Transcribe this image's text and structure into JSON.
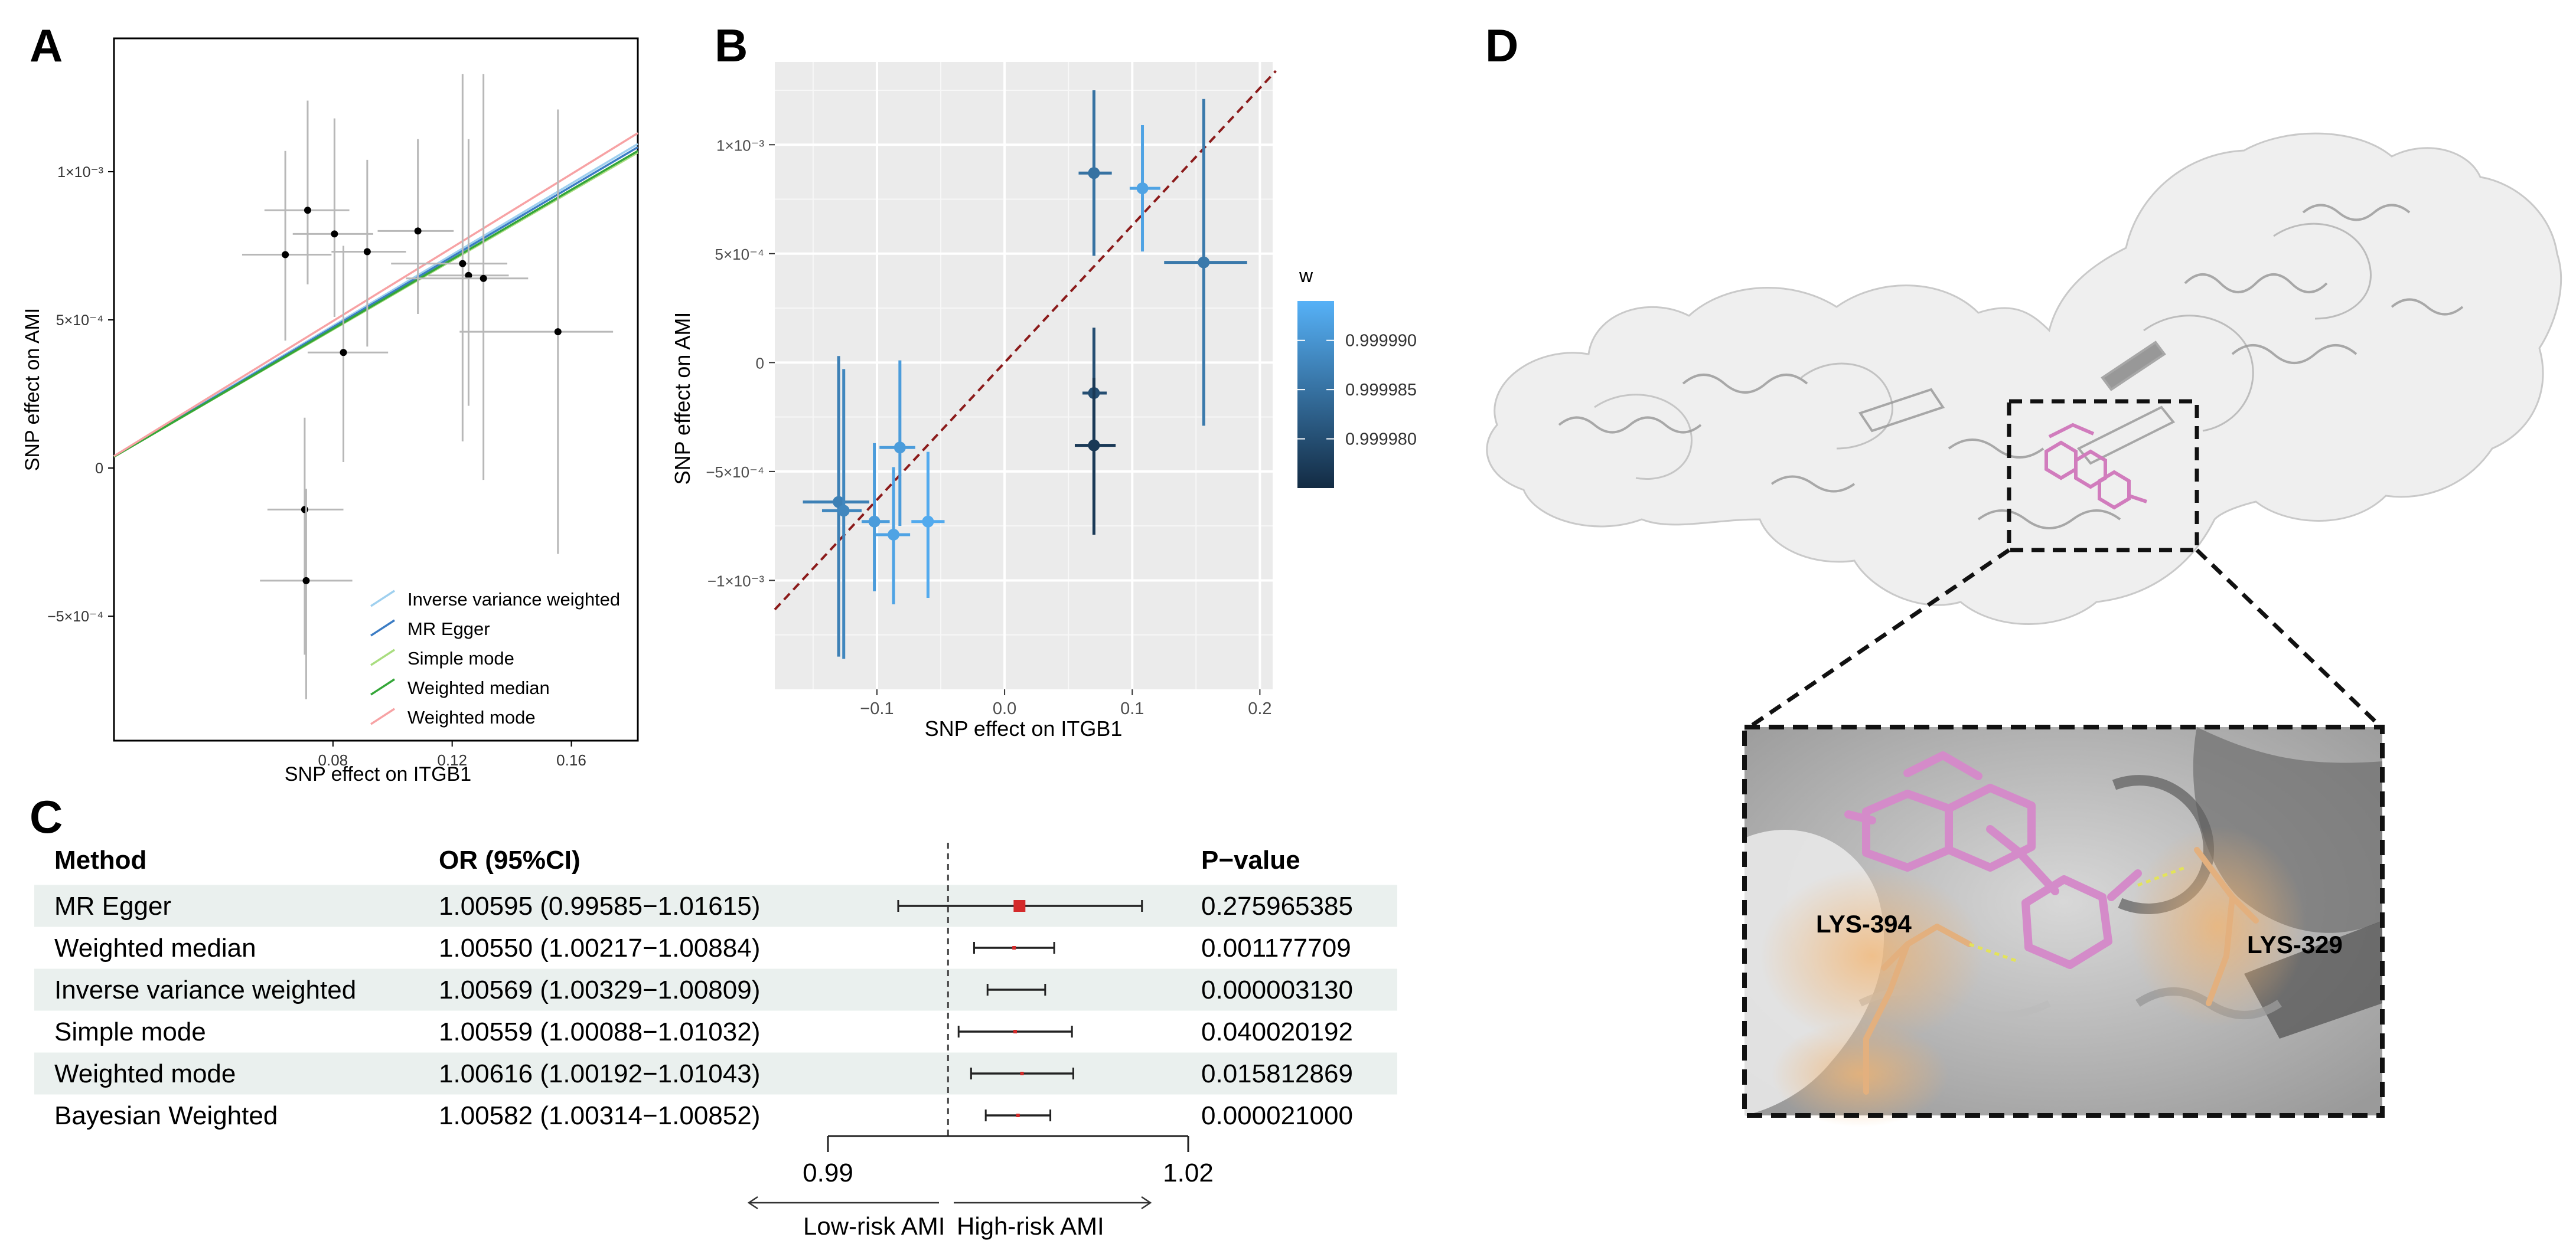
{
  "panel_letters": {
    "a": "A",
    "b": "B",
    "c": "C",
    "d": "D"
  },
  "chart_data": [
    {
      "type": "scatter",
      "panel": "A",
      "xlabel": "SNP effect on ITGB1",
      "ylabel": "SNP effect on AMI",
      "xlim": [
        0.0065,
        0.1823
      ],
      "ylim": [
        -0.00092,
        0.00145
      ],
      "x_ticks": [
        {
          "value": 0.08,
          "label": "0.08"
        },
        {
          "value": 0.12,
          "label": "0.12"
        },
        {
          "value": 0.16,
          "label": "0.16"
        }
      ],
      "y_ticks": [
        {
          "value": 0.001,
          "label": "1×10⁻³"
        },
        {
          "value": 0.0005,
          "label": "5×10⁻⁴"
        },
        {
          "value": 0,
          "label": "0"
        },
        {
          "value": -0.0005,
          "label": "−5×10⁻⁴"
        }
      ],
      "points": [
        {
          "x": 0.064,
          "y": 0.00072,
          "xlo": 0.0495,
          "xhi": 0.0795,
          "ylo": 0.00043,
          "yhi": 0.00107
        },
        {
          "x": 0.0715,
          "y": 0.00087,
          "xlo": 0.057,
          "xhi": 0.0855,
          "ylo": 0.00062,
          "yhi": 0.00124
        },
        {
          "x": 0.0805,
          "y": 0.00079,
          "xlo": 0.0665,
          "xhi": 0.0935,
          "ylo": 0.00051,
          "yhi": 0.00118
        },
        {
          "x": 0.0835,
          "y": 0.00039,
          "xlo": 0.0715,
          "xhi": 0.0985,
          "ylo": 2e-05,
          "yhi": 0.00075
        },
        {
          "x": 0.0915,
          "y": 0.00073,
          "xlo": 0.0795,
          "xhi": 0.1045,
          "ylo": 0.00041,
          "yhi": 0.00104
        },
        {
          "x": 0.1085,
          "y": 0.0008,
          "xlo": 0.095,
          "xhi": 0.1205,
          "ylo": 0.00052,
          "yhi": 0.00111
        },
        {
          "x": 0.1235,
          "y": 0.00069,
          "xlo": 0.0995,
          "xhi": 0.1385,
          "ylo": 9e-05,
          "yhi": 0.00133
        },
        {
          "x": 0.1255,
          "y": 0.00065,
          "xlo": 0.112,
          "xhi": 0.139,
          "ylo": 0.00021,
          "yhi": 0.00111
        },
        {
          "x": 0.1305,
          "y": 0.00064,
          "xlo": 0.1045,
          "xhi": 0.1455,
          "ylo": -4e-05,
          "yhi": 0.00133
        },
        {
          "x": 0.1555,
          "y": 0.00046,
          "xlo": 0.1225,
          "xhi": 0.174,
          "ylo": -0.00029,
          "yhi": 0.00121
        },
        {
          "x": 0.0705,
          "y": -0.00014,
          "xlo": 0.058,
          "xhi": 0.0835,
          "ylo": -0.00063,
          "yhi": 0.00017
        },
        {
          "x": 0.071,
          "y": -0.00038,
          "xlo": 0.0555,
          "xhi": 0.0865,
          "ylo": -0.00078,
          "yhi": -7e-05
        }
      ],
      "lines": [
        {
          "name": "Inverse variance weighted",
          "color": "#9fd0ef",
          "slope": 0.006,
          "intercept": 0.0
        },
        {
          "name": "MR Egger",
          "color": "#3b7cc4",
          "slope": 0.00594,
          "intercept": 0.0
        },
        {
          "name": "Simple mode",
          "color": "#a9dd7f",
          "slope": 0.00584,
          "intercept": 0.0
        },
        {
          "name": "Weighted median",
          "color": "#34a638",
          "slope": 0.00587,
          "intercept": 0.0
        },
        {
          "name": "Weighted mode",
          "color": "#f7a2a4",
          "slope": 0.0062,
          "intercept": 0.0
        }
      ],
      "legend": [
        {
          "label": "Inverse variance weighted",
          "color": "#9fd0ef"
        },
        {
          "label": "MR Egger",
          "color": "#3b7cc4"
        },
        {
          "label": "Simple mode",
          "color": "#a9dd7f"
        },
        {
          "label": "Weighted median",
          "color": "#34a638"
        },
        {
          "label": "Weighted mode",
          "color": "#f7a2a4"
        }
      ]
    },
    {
      "type": "scatter",
      "panel": "B",
      "xlabel": "SNP effect on ITGB1",
      "ylabel": "SNP effect on AMI",
      "xlim": [
        -0.18,
        0.21
      ],
      "ylim": [
        -0.0015,
        0.00138
      ],
      "x_ticks": [
        {
          "value": -0.1,
          "label": "−0.1"
        },
        {
          "value": 0.0,
          "label": "0.0"
        },
        {
          "value": 0.1,
          "label": "0.1"
        },
        {
          "value": 0.2,
          "label": "0.2"
        }
      ],
      "y_ticks": [
        {
          "value": 0.001,
          "label": "1×10⁻³"
        },
        {
          "value": 0.0005,
          "label": "5×10⁻⁴"
        },
        {
          "value": 0,
          "label": "0"
        },
        {
          "value": -0.0005,
          "label": "−5×10⁻⁴"
        },
        {
          "value": -0.001,
          "label": "−1×10⁻³"
        }
      ],
      "reference_line": {
        "slope": 0.0063,
        "intercept": 0.0,
        "color": "#8b1a1a",
        "style": "dashed"
      },
      "points": [
        {
          "x": 0.07,
          "y": 0.00087,
          "xlo": 0.058,
          "xhi": 0.084,
          "ylo": 0.00125,
          "yhi": 0.00049,
          "w": 0.999985
        },
        {
          "x": 0.108,
          "y": 0.0008,
          "xlo": 0.098,
          "xhi": 0.122,
          "ylo": 0.00109,
          "yhi": 0.00051,
          "w": 0.999992
        },
        {
          "x": 0.156,
          "y": 0.00046,
          "xlo": 0.125,
          "xhi": 0.19,
          "ylo": 0.00121,
          "yhi": -0.00029,
          "w": 0.999986
        },
        {
          "x": 0.07,
          "y": -0.00014,
          "xlo": 0.061,
          "xhi": 0.08,
          "ylo": 0.00016,
          "yhi": -0.00063,
          "w": 0.99998
        },
        {
          "x": 0.07,
          "y": -0.00038,
          "xlo": 0.055,
          "xhi": 0.087,
          "ylo": -7e-05,
          "yhi": -0.00079,
          "w": 0.999977
        },
        {
          "x": -0.082,
          "y": -0.00039,
          "xlo": -0.098,
          "xhi": -0.07,
          "ylo": 1e-05,
          "yhi": -0.00075,
          "w": 0.999991
        },
        {
          "x": -0.13,
          "y": -0.00064,
          "xlo": -0.158,
          "xhi": -0.106,
          "ylo": 3e-05,
          "yhi": -0.00135,
          "w": 0.999987
        },
        {
          "x": -0.126,
          "y": -0.00068,
          "xlo": -0.143,
          "xhi": -0.112,
          "ylo": -3e-05,
          "yhi": -0.00136,
          "w": 0.999988
        },
        {
          "x": -0.102,
          "y": -0.00073,
          "xlo": -0.112,
          "xhi": -0.09,
          "ylo": -0.00037,
          "yhi": -0.00105,
          "w": 0.999991
        },
        {
          "x": -0.087,
          "y": -0.00079,
          "xlo": -0.101,
          "xhi": -0.074,
          "ylo": -0.00048,
          "yhi": -0.00111,
          "w": 0.999992
        },
        {
          "x": -0.06,
          "y": -0.00073,
          "xlo": -0.073,
          "xhi": -0.047,
          "ylo": -0.00041,
          "yhi": -0.00108,
          "w": 0.999993
        }
      ],
      "colorbar": {
        "title": "w",
        "min": 0.999975,
        "max": 0.999994,
        "low_color": "#132b43",
        "high_color": "#56b1f7",
        "ticks": [
          {
            "value": 0.99999,
            "label": "0.999990"
          },
          {
            "value": 0.999985,
            "label": "0.999985"
          },
          {
            "value": 0.99998,
            "label": "0.999980"
          }
        ]
      }
    },
    {
      "type": "table",
      "panel": "C",
      "headers": {
        "method": "Method",
        "or": "OR (95%CI)",
        "p": "P−value"
      },
      "xlim": [
        0.99,
        1.02
      ],
      "null_value": 1.0,
      "x_ticks": [
        {
          "value": 0.99,
          "label": "0.99"
        },
        {
          "value": 1.02,
          "label": "1.02"
        }
      ],
      "axis_labels": {
        "left": "Low-risk AMI",
        "right": "High-risk AMI"
      },
      "rows": [
        {
          "method": "MR Egger",
          "or_text": "1.00595 (0.99585−1.01615)",
          "p": "0.275965385",
          "or": 1.00595,
          "lo": 0.99585,
          "hi": 1.01615,
          "box": "large"
        },
        {
          "method": "Weighted median",
          "or_text": "1.00550 (1.00217−1.00884)",
          "p": "0.001177709",
          "or": 1.0055,
          "lo": 1.00217,
          "hi": 1.00884,
          "box": "small"
        },
        {
          "method": "Inverse variance weighted",
          "or_text": "1.00569 (1.00329−1.00809)",
          "p": "0.000003130",
          "or": 1.00569,
          "lo": 1.00329,
          "hi": 1.00809,
          "box": "none"
        },
        {
          "method": "Simple mode",
          "or_text": "1.00559 (1.00088−1.01032)",
          "p": "0.040020192",
          "or": 1.00559,
          "lo": 1.00088,
          "hi": 1.01032,
          "box": "small"
        },
        {
          "method": "Weighted mode",
          "or_text": "1.00616 (1.00192−1.01043)",
          "p": "0.015812869",
          "or": 1.00616,
          "lo": 1.00192,
          "hi": 1.01043,
          "box": "small"
        },
        {
          "method": "Bayesian Weighted",
          "or_text": "1.00582 (1.00314−1.00852)",
          "p": "0.000021000",
          "or": 1.00582,
          "lo": 1.00314,
          "hi": 1.00852,
          "box": "small"
        }
      ]
    }
  ],
  "panel_d": {
    "residue_left": "LYS-394",
    "residue_right": "LYS-329"
  }
}
